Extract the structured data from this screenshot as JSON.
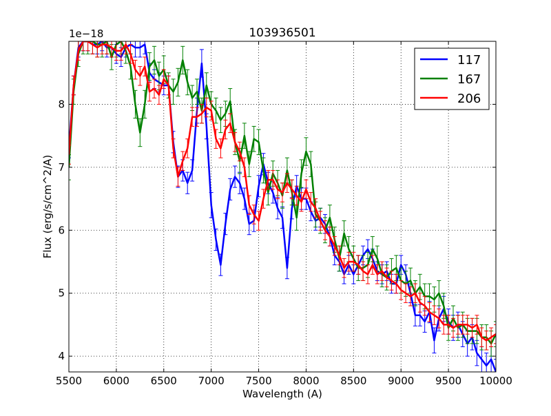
{
  "chart_data": {
    "type": "line",
    "title": "103936501",
    "xlabel": "Wavelength (A)",
    "ylabel": "Flux (erg/s/cm^2/A)",
    "offset_label": "1e−18",
    "xlim": [
      5500,
      10000
    ],
    "ylim": [
      3.75,
      9.0
    ],
    "xticks": [
      5500,
      6000,
      6500,
      7000,
      7500,
      8000,
      8500,
      9000,
      9500,
      10000
    ],
    "yticks": [
      4,
      5,
      6,
      7,
      8
    ],
    "grid": true,
    "legend_position": "top-right",
    "series": [
      {
        "name": "117",
        "color": "#0000ff",
        "x": [
          5500,
          5550,
          5600,
          5650,
          5700,
          5750,
          5800,
          5850,
          5900,
          5950,
          6000,
          6050,
          6100,
          6150,
          6200,
          6250,
          6300,
          6350,
          6400,
          6450,
          6500,
          6550,
          6600,
          6650,
          6700,
          6750,
          6800,
          6850,
          6900,
          6950,
          7000,
          7050,
          7100,
          7150,
          7200,
          7250,
          7300,
          7350,
          7400,
          7450,
          7500,
          7550,
          7600,
          7650,
          7700,
          7750,
          7800,
          7850,
          7900,
          7950,
          8000,
          8050,
          8100,
          8150,
          8200,
          8250,
          8300,
          8350,
          8400,
          8450,
          8500,
          8550,
          8600,
          8650,
          8700,
          8750,
          8800,
          8850,
          8900,
          8950,
          9000,
          9050,
          9100,
          9150,
          9200,
          9250,
          9300,
          9350,
          9400,
          9450,
          9500,
          9550,
          9600,
          9650,
          9700,
          9750,
          9800,
          9850,
          9900,
          9950,
          10000
        ],
        "y": [
          7.3,
          8.3,
          8.9,
          9.0,
          9.0,
          8.95,
          8.95,
          9.0,
          8.9,
          8.9,
          8.8,
          8.75,
          8.9,
          8.95,
          8.9,
          8.9,
          8.95,
          8.5,
          8.4,
          8.35,
          8.3,
          8.3,
          7.4,
          6.85,
          6.95,
          6.75,
          6.95,
          7.9,
          8.65,
          7.65,
          6.4,
          5.85,
          5.45,
          6.1,
          6.65,
          6.85,
          6.75,
          6.5,
          6.1,
          6.15,
          6.7,
          7.05,
          6.75,
          6.6,
          6.35,
          6.2,
          5.4,
          6.35,
          6.7,
          6.5,
          6.5,
          6.3,
          6.15,
          6.2,
          6.1,
          5.9,
          5.6,
          5.5,
          5.3,
          5.45,
          5.3,
          5.45,
          5.6,
          5.7,
          5.55,
          5.35,
          5.3,
          5.35,
          5.15,
          5.15,
          5.45,
          5.3,
          5.0,
          4.65,
          4.65,
          4.55,
          4.7,
          4.25,
          4.6,
          4.75,
          4.55,
          4.45,
          4.5,
          4.35,
          4.2,
          4.3,
          4.05,
          3.95,
          3.85,
          3.95,
          3.75
        ],
        "errors": [
          0.15,
          0.15,
          0.15,
          0.15,
          0.15,
          0.15,
          0.15,
          0.15,
          0.15,
          0.15,
          0.15,
          0.15,
          0.15,
          0.15,
          0.15,
          0.15,
          0.15,
          0.15,
          0.15,
          0.15,
          0.15,
          0.15,
          0.17,
          0.17,
          0.17,
          0.17,
          0.17,
          0.2,
          0.22,
          0.2,
          0.2,
          0.17,
          0.17,
          0.17,
          0.17,
          0.17,
          0.17,
          0.17,
          0.17,
          0.17,
          0.17,
          0.17,
          0.17,
          0.17,
          0.17,
          0.17,
          0.17,
          0.17,
          0.17,
          0.17,
          0.17,
          0.15,
          0.15,
          0.15,
          0.15,
          0.15,
          0.15,
          0.15,
          0.15,
          0.15,
          0.15,
          0.15,
          0.15,
          0.15,
          0.15,
          0.15,
          0.15,
          0.15,
          0.15,
          0.15,
          0.15,
          0.15,
          0.15,
          0.17,
          0.17,
          0.17,
          0.17,
          0.2,
          0.2,
          0.2,
          0.2,
          0.2,
          0.2,
          0.2,
          0.2,
          0.2,
          0.2,
          0.2,
          0.2,
          0.2,
          0.2
        ]
      },
      {
        "name": "167",
        "color": "#008000",
        "x": [
          5500,
          5550,
          5600,
          5650,
          5700,
          5750,
          5800,
          5850,
          5900,
          5950,
          6000,
          6050,
          6100,
          6150,
          6200,
          6250,
          6300,
          6350,
          6400,
          6450,
          6500,
          6550,
          6600,
          6650,
          6700,
          6750,
          6800,
          6850,
          6900,
          6950,
          7000,
          7050,
          7100,
          7150,
          7200,
          7250,
          7300,
          7350,
          7400,
          7450,
          7500,
          7550,
          7600,
          7650,
          7700,
          7750,
          7800,
          7850,
          7900,
          7950,
          8000,
          8050,
          8100,
          8150,
          8200,
          8250,
          8300,
          8350,
          8400,
          8450,
          8500,
          8550,
          8600,
          8650,
          8700,
          8750,
          8800,
          8850,
          8900,
          8950,
          9000,
          9050,
          9100,
          9150,
          9200,
          9250,
          9300,
          9350,
          9400,
          9450,
          9500,
          9550,
          9600,
          9650,
          9700,
          9750,
          9800,
          9850,
          9900,
          9950,
          10000
        ],
        "y": [
          7.0,
          8.2,
          8.8,
          9.0,
          9.0,
          9.0,
          8.95,
          8.95,
          9.0,
          8.75,
          8.95,
          9.0,
          8.85,
          8.6,
          8.0,
          7.55,
          8.0,
          8.6,
          8.7,
          8.45,
          8.55,
          8.3,
          8.2,
          8.35,
          8.7,
          8.35,
          8.1,
          8.2,
          7.9,
          8.3,
          8.0,
          7.9,
          7.75,
          7.85,
          8.05,
          7.4,
          7.1,
          7.5,
          7.05,
          7.45,
          7.4,
          6.95,
          6.6,
          6.9,
          6.75,
          6.55,
          6.95,
          6.6,
          6.2,
          6.9,
          7.25,
          7.05,
          6.25,
          6.15,
          6.0,
          6.2,
          5.85,
          5.55,
          5.95,
          5.7,
          5.55,
          5.4,
          5.4,
          5.45,
          5.7,
          5.55,
          5.3,
          5.25,
          5.35,
          5.4,
          5.2,
          5.15,
          5.2,
          5.0,
          5.1,
          4.95,
          4.95,
          4.9,
          5.0,
          4.8,
          4.45,
          4.6,
          4.45,
          4.5,
          4.4,
          4.4,
          4.4,
          4.3,
          4.3,
          4.2,
          4.35
        ],
        "errors": [
          0.2,
          0.2,
          0.2,
          0.2,
          0.2,
          0.2,
          0.2,
          0.2,
          0.2,
          0.2,
          0.2,
          0.2,
          0.2,
          0.2,
          0.22,
          0.22,
          0.22,
          0.22,
          0.22,
          0.22,
          0.22,
          0.2,
          0.2,
          0.22,
          0.22,
          0.2,
          0.2,
          0.2,
          0.2,
          0.2,
          0.2,
          0.2,
          0.2,
          0.2,
          0.2,
          0.2,
          0.2,
          0.2,
          0.2,
          0.2,
          0.2,
          0.2,
          0.2,
          0.2,
          0.2,
          0.2,
          0.2,
          0.2,
          0.2,
          0.22,
          0.22,
          0.2,
          0.2,
          0.2,
          0.2,
          0.2,
          0.2,
          0.2,
          0.2,
          0.2,
          0.2,
          0.2,
          0.2,
          0.2,
          0.2,
          0.2,
          0.2,
          0.2,
          0.2,
          0.2,
          0.2,
          0.2,
          0.2,
          0.2,
          0.2,
          0.2,
          0.2,
          0.2,
          0.2,
          0.2,
          0.2,
          0.2,
          0.2,
          0.2,
          0.2,
          0.2,
          0.2,
          0.2,
          0.2,
          0.2,
          0.2
        ]
      },
      {
        "name": "206",
        "color": "#ff0000",
        "x": [
          5500,
          5550,
          5600,
          5650,
          5700,
          5750,
          5800,
          5850,
          5900,
          5950,
          6000,
          6050,
          6100,
          6150,
          6200,
          6250,
          6300,
          6350,
          6400,
          6450,
          6500,
          6550,
          6600,
          6650,
          6700,
          6750,
          6800,
          6850,
          6900,
          6950,
          7000,
          7050,
          7100,
          7150,
          7200,
          7250,
          7300,
          7350,
          7400,
          7450,
          7500,
          7550,
          7600,
          7650,
          7700,
          7750,
          7800,
          7850,
          7900,
          7950,
          8000,
          8050,
          8100,
          8150,
          8200,
          8250,
          8300,
          8350,
          8400,
          8450,
          8500,
          8550,
          8600,
          8650,
          8700,
          8750,
          8800,
          8850,
          8900,
          8950,
          9000,
          9050,
          9100,
          9150,
          9200,
          9250,
          9300,
          9350,
          9400,
          9450,
          9500,
          9550,
          9600,
          9650,
          9700,
          9750,
          9800,
          9850,
          9900,
          9950,
          10000
        ],
        "y": [
          7.2,
          8.3,
          8.85,
          9.0,
          9.0,
          8.95,
          8.9,
          8.95,
          8.95,
          8.9,
          8.85,
          8.85,
          8.95,
          8.8,
          8.55,
          8.45,
          8.6,
          8.2,
          8.25,
          8.15,
          8.4,
          8.3,
          7.3,
          6.85,
          7.1,
          7.3,
          7.8,
          7.8,
          7.85,
          7.95,
          7.9,
          7.45,
          7.3,
          7.6,
          7.7,
          7.4,
          7.25,
          7.0,
          6.4,
          6.25,
          6.15,
          6.5,
          6.8,
          6.8,
          6.65,
          6.6,
          6.75,
          6.65,
          6.55,
          6.45,
          6.65,
          6.45,
          6.35,
          6.15,
          6.0,
          5.9,
          5.75,
          5.6,
          5.4,
          5.5,
          5.5,
          5.45,
          5.35,
          5.3,
          5.45,
          5.3,
          5.35,
          5.25,
          5.2,
          5.15,
          5.05,
          5.0,
          4.95,
          5.0,
          4.85,
          4.8,
          4.7,
          4.65,
          4.6,
          4.5,
          4.5,
          4.45,
          4.5,
          4.5,
          4.5,
          4.45,
          4.5,
          4.3,
          4.25,
          4.3,
          4.35
        ],
        "errors": [
          0.15,
          0.15,
          0.15,
          0.15,
          0.15,
          0.15,
          0.15,
          0.15,
          0.15,
          0.15,
          0.15,
          0.15,
          0.15,
          0.15,
          0.15,
          0.15,
          0.15,
          0.15,
          0.15,
          0.15,
          0.15,
          0.15,
          0.15,
          0.15,
          0.15,
          0.15,
          0.15,
          0.15,
          0.15,
          0.15,
          0.15,
          0.15,
          0.15,
          0.15,
          0.15,
          0.15,
          0.15,
          0.15,
          0.15,
          0.15,
          0.15,
          0.15,
          0.15,
          0.15,
          0.15,
          0.15,
          0.15,
          0.15,
          0.15,
          0.15,
          0.15,
          0.15,
          0.15,
          0.15,
          0.15,
          0.15,
          0.15,
          0.15,
          0.15,
          0.15,
          0.15,
          0.15,
          0.15,
          0.15,
          0.15,
          0.15,
          0.15,
          0.15,
          0.15,
          0.15,
          0.15,
          0.15,
          0.15,
          0.15,
          0.15,
          0.15,
          0.15,
          0.15,
          0.15,
          0.15,
          0.15,
          0.15,
          0.15,
          0.15,
          0.15,
          0.15,
          0.15,
          0.15,
          0.15,
          0.15,
          0.15
        ]
      }
    ]
  }
}
